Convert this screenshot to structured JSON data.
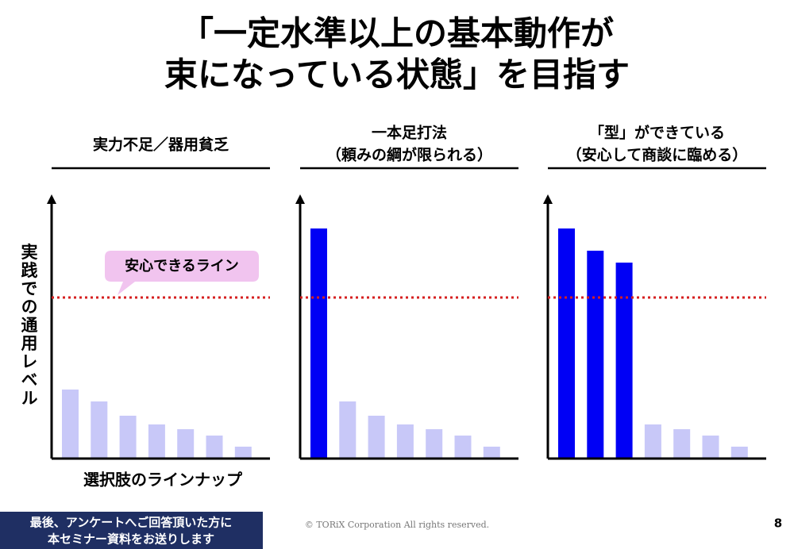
{
  "title": [
    "「一定水準以上の基本動作が",
    "束になっている状態」を目指す"
  ],
  "y_axis_label": "実践での通用レベル",
  "x_axis_label": "選択肢のラインナップ",
  "threshold_label": "安心できるライン",
  "chart_data": [
    {
      "type": "bar",
      "title": [
        "実力不足／器用貧乏"
      ],
      "values": [
        87,
        72,
        54,
        43,
        37,
        29,
        15
      ],
      "colors": [
        "#c8c8f8",
        "#c8c8f8",
        "#c8c8f8",
        "#c8c8f8",
        "#c8c8f8",
        "#c8c8f8",
        "#c8c8f8"
      ],
      "threshold": 203,
      "threshold_color": "#d62020"
    },
    {
      "type": "bar",
      "title": [
        "一本足打法",
        "（頼みの綱が限られる）"
      ],
      "values": [
        290,
        72,
        54,
        43,
        37,
        29,
        15
      ],
      "colors": [
        "#0000f5",
        "#c8c8f8",
        "#c8c8f8",
        "#c8c8f8",
        "#c8c8f8",
        "#c8c8f8",
        "#c8c8f8"
      ],
      "threshold": 203,
      "threshold_color": "#d62020"
    },
    {
      "type": "bar",
      "title": [
        "「型」ができている",
        "（安心して商談に臨める）"
      ],
      "values": [
        290,
        262,
        247,
        43,
        37,
        29,
        15
      ],
      "colors": [
        "#0000f5",
        "#0000f5",
        "#0000f5",
        "#c8c8f8",
        "#c8c8f8",
        "#c8c8f8",
        "#c8c8f8"
      ],
      "threshold": 203,
      "threshold_color": "#d62020"
    }
  ],
  "footer": {
    "banner": [
      "最後、アンケートへご回答頂いた方に",
      "本セミナー資料をお送りします"
    ],
    "copyright": "© TORiX Corporation All rights reserved."
  },
  "page_number": "8"
}
